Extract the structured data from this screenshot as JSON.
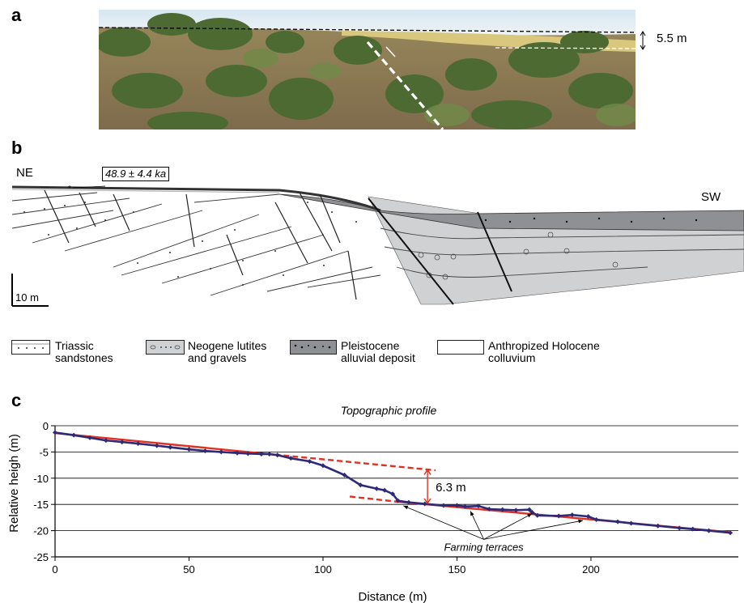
{
  "panels": {
    "a": "a",
    "b": "b",
    "c": "c"
  },
  "panel_a": {
    "throw_label": "5.5 m"
  },
  "panel_b": {
    "ne_label": "NE",
    "sw_label": "SW",
    "age_label": "48.9 ± 4.4 ka",
    "scale_label": "10 m",
    "legend": [
      {
        "line1": "Triassic",
        "line2": "sandstones",
        "fill": "#ffffff"
      },
      {
        "line1": "Neogene lutites",
        "line2": "and gravels",
        "fill": "#cfd1d3"
      },
      {
        "line1": "Pleistocene",
        "line2": "alluvial deposit",
        "fill": "#8e9094"
      },
      {
        "line1": "Anthropized Holocene",
        "line2": "colluvium",
        "fill": "#ffffff"
      }
    ]
  },
  "chart_data": {
    "type": "line",
    "title": "Topographic profile",
    "xlabel": "Distance (m)",
    "ylabel": "Relative heigh (m)",
    "xlim": [
      0,
      255
    ],
    "ylim": [
      -25,
      0
    ],
    "xticks": [
      0,
      50,
      100,
      150,
      200
    ],
    "yticks": [
      0,
      -5,
      -10,
      -15,
      -20,
      -25
    ],
    "grid": "horizontal",
    "series": [
      {
        "color": "#2e2a78",
        "x": [
          0,
          7,
          13,
          19,
          25,
          31,
          38,
          43,
          50,
          56,
          62,
          68,
          72,
          77,
          80,
          83,
          88,
          95,
          100,
          108,
          114,
          120,
          123,
          126,
          128,
          132,
          138,
          145,
          150,
          153,
          158,
          162,
          167,
          172,
          177,
          178,
          180,
          188,
          193,
          199,
          202,
          210,
          215,
          225,
          233,
          238,
          244,
          252
        ],
        "y": [
          -1.3,
          -1.8,
          -2.3,
          -2.8,
          -3.1,
          -3.4,
          -3.8,
          -4.1,
          -4.5,
          -4.8,
          -5.0,
          -5.2,
          -5.3,
          -5.4,
          -5.4,
          -5.6,
          -6.2,
          -6.8,
          -7.6,
          -9.4,
          -11.3,
          -12.0,
          -12.3,
          -13.0,
          -14.3,
          -14.6,
          -14.9,
          -15.2,
          -15.2,
          -15.4,
          -15.3,
          -15.9,
          -16.0,
          -16.1,
          -16.0,
          -16.5,
          -17.1,
          -17.2,
          -17.0,
          -17.3,
          -17.9,
          -18.3,
          -18.6,
          -19.1,
          -19.5,
          -19.7,
          -20.0,
          -20.4
        ]
      }
    ],
    "fit_lines": [
      {
        "color": "#e23020",
        "x": [
          0,
          82
        ],
        "y": [
          -1.4,
          -5.5
        ],
        "style": "solid"
      },
      {
        "color": "#e23020",
        "x": [
          82,
          142
        ],
        "y": [
          -5.5,
          -8.5
        ],
        "style": "dashed"
      },
      {
        "color": "#e23020",
        "x": [
          128,
          252
        ],
        "y": [
          -14.5,
          -20.3
        ],
        "style": "solid"
      },
      {
        "color": "#e23020",
        "x": [
          110,
          128
        ],
        "y": [
          -13.5,
          -14.5
        ],
        "style": "dashed"
      }
    ],
    "offset_annotation": {
      "label": "6.3 m",
      "x": 139,
      "y_top": -8.4,
      "y_bottom": -14.8
    },
    "terrace_annotation": {
      "label": "Farming terraces",
      "label_x": 160,
      "label_y": -23.2,
      "targets": [
        [
          130,
          -14.8
        ],
        [
          155,
          -15.8
        ],
        [
          178,
          -16.3
        ],
        [
          197,
          -17.6
        ]
      ]
    }
  }
}
